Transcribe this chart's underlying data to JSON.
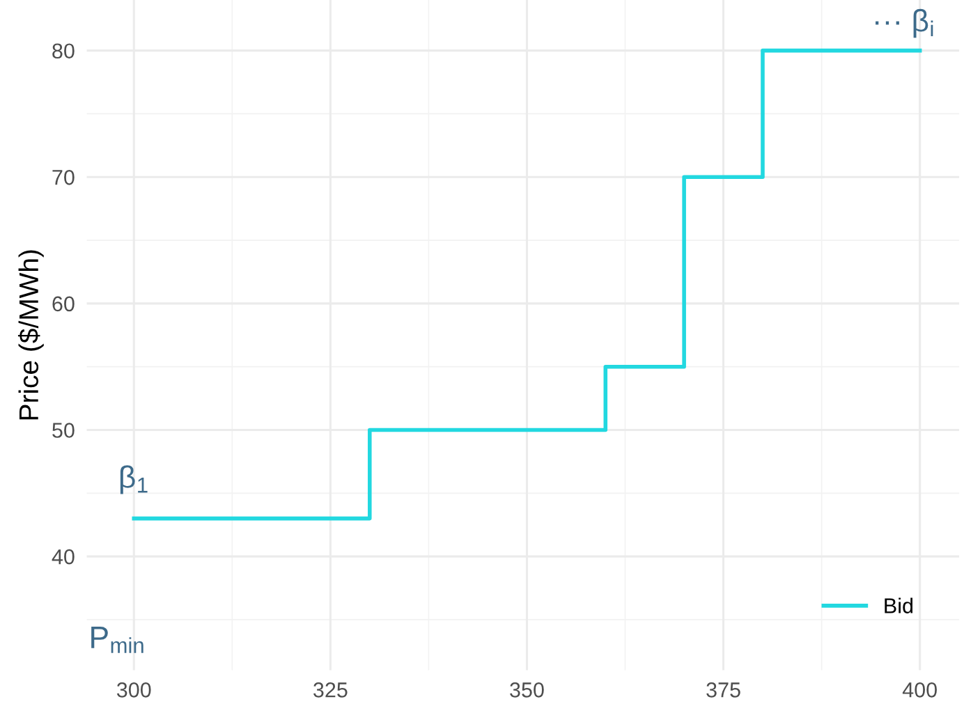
{
  "chart_data": {
    "type": "step",
    "ylabel": "Price ($/MWh)",
    "x": [
      300,
      330,
      360,
      370,
      380,
      400
    ],
    "series": [
      {
        "name": "Bid",
        "color": "#22d8e0",
        "values": [
          43,
          50,
          55,
          70,
          80,
          80
        ]
      }
    ],
    "xlim": [
      294,
      405
    ],
    "xticks": [
      300,
      325,
      350,
      375,
      400
    ],
    "ylim": [
      31,
      84
    ],
    "yticks": [
      40,
      50,
      60,
      70,
      80
    ],
    "grid": true,
    "legend": "bottom right",
    "line_style": "solid",
    "annotations": [
      "β$_{1}$",
      "··· β$_{i}$",
      "P$_{min}$"
    ]
  }
}
